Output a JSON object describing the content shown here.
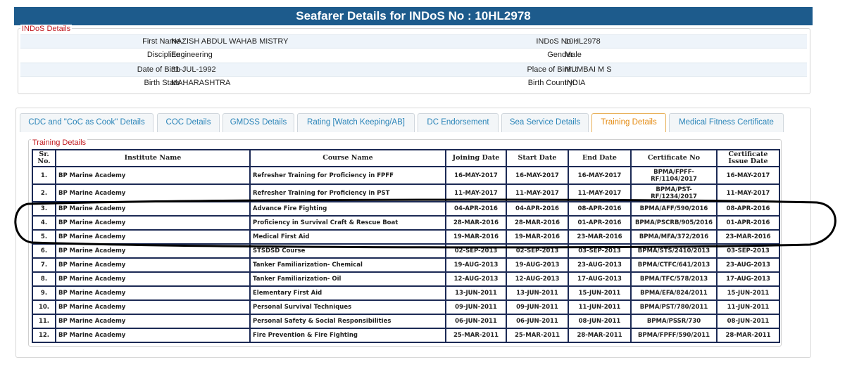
{
  "header": {
    "title": "Seafarer Details for INDoS No : 10HL2978"
  },
  "indos": {
    "legend": "INDoS Details",
    "rows": [
      [
        "First Name :",
        "NAZISH ABDUL WAHAB MISTRY",
        "INDoS No. :",
        "10HL2978"
      ],
      [
        "Discipline :",
        "Engineering",
        "Gender :",
        "Male"
      ],
      [
        "Date of Birth :",
        "31-JUL-1992",
        "Place of Birth :",
        "MUMBAI M S"
      ],
      [
        "Birth State :",
        "MAHARASHTRA",
        "Birth Country :",
        "INDIA"
      ]
    ]
  },
  "tabs": [
    "CDC and \"CoC as Cook\" Details",
    "COC Details",
    "GMDSS Details",
    "Rating [Watch Keeping/AB]",
    "DC Endorsement",
    "Sea Service Details",
    "Training Details",
    "Medical Fitness Certificate"
  ],
  "training": {
    "legend": "Training Details",
    "columns": [
      "Sr. No.",
      "Institute Name",
      "Course Name",
      "Joining Date",
      "Start Date",
      "End Date",
      "Certificate No",
      "Certificate Issue Date"
    ],
    "rows": [
      [
        "1.",
        "BP Marine Academy",
        "Refresher Training for Proficiency in FPFF",
        "16-MAY-2017",
        "16-MAY-2017",
        "16-MAY-2017",
        "BPMA/FPFF-RF/1104/2017",
        "16-MAY-2017"
      ],
      [
        "2.",
        "BP Marine Academy",
        "Refresher Training for Proficiency in PST",
        "11-MAY-2017",
        "11-MAY-2017",
        "11-MAY-2017",
        "BPMA/PST-RF/1234/2017",
        "11-MAY-2017"
      ],
      [
        "3.",
        "BP Marine Academy",
        "Advance Fire Fighting",
        "04-APR-2016",
        "04-APR-2016",
        "08-APR-2016",
        "BPMA/AFF/590/2016",
        "08-APR-2016"
      ],
      [
        "4.",
        "BP Marine Academy",
        "Proficiency in Survival Craft & Rescue Boat",
        "28-MAR-2016",
        "28-MAR-2016",
        "01-APR-2016",
        "BPMA/PSCRB/905/2016",
        "01-APR-2016"
      ],
      [
        "5.",
        "BP Marine Academy",
        "Medical First Aid",
        "19-MAR-2016",
        "19-MAR-2016",
        "23-MAR-2016",
        "BPMA/MFA/372/2016",
        "23-MAR-2016"
      ],
      [
        "6.",
        "BP Marine Academy",
        "STSDSD Course",
        "02-SEP-2013",
        "02-SEP-2013",
        "03-SEP-2013",
        "BPMA/STS/2410/2013",
        "03-SEP-2013"
      ],
      [
        "7.",
        "BP Marine Academy",
        "Tanker Familiarization- Chemical",
        "19-AUG-2013",
        "19-AUG-2013",
        "23-AUG-2013",
        "BPMA/CTFC/641/2013",
        "23-AUG-2013"
      ],
      [
        "8.",
        "BP Marine Academy",
        "Tanker Familiarization- Oil",
        "12-AUG-2013",
        "12-AUG-2013",
        "17-AUG-2013",
        "BPMA/TFC/578/2013",
        "17-AUG-2013"
      ],
      [
        "9.",
        "BP Marine Academy",
        "Elementary First Aid",
        "13-JUN-2011",
        "13-JUN-2011",
        "15-JUN-2011",
        "BPMA/EFA/824/2011",
        "15-JUN-2011"
      ],
      [
        "10.",
        "BP Marine Academy",
        "Personal Survival Techniques",
        "09-JUN-2011",
        "09-JUN-2011",
        "11-JUN-2011",
        "BPMA/PST/780/2011",
        "11-JUN-2011"
      ],
      [
        "11.",
        "BP Marine Academy",
        "Personal Safety & Social Responsibilities",
        "06-JUN-2011",
        "06-JUN-2011",
        "08-JUN-2011",
        "BPMA/PSSR/730",
        "08-JUN-2011"
      ],
      [
        "12.",
        "BP Marine Academy",
        "Fire Prevention & Fire Fighting",
        "25-MAR-2011",
        "25-MAR-2011",
        "28-MAR-2011",
        "BPMA/FPFF/590/2011",
        "28-MAR-2011"
      ]
    ]
  }
}
